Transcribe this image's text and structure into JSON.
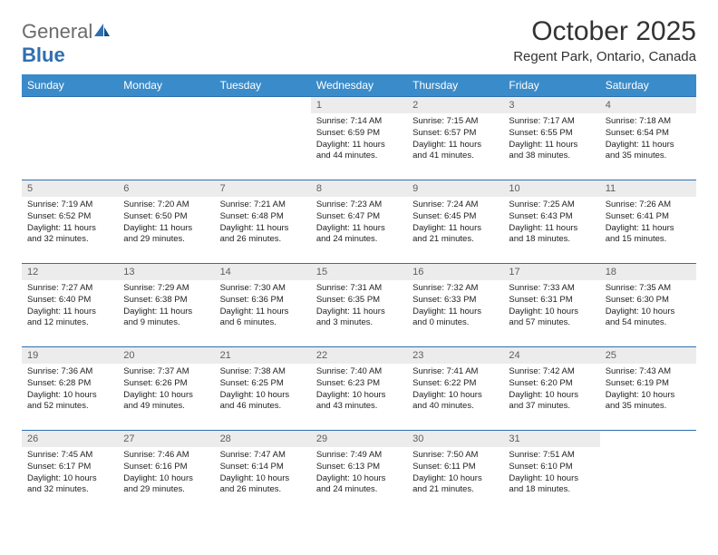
{
  "brand": {
    "name_a": "General",
    "name_b": "Blue"
  },
  "title": "October 2025",
  "location": "Regent Park, Ontario, Canada",
  "header_bg": "#3a8bc9",
  "border_color": "#2f6fb0",
  "daynum_bg": "#ececec",
  "day_headers": [
    "Sunday",
    "Monday",
    "Tuesday",
    "Wednesday",
    "Thursday",
    "Friday",
    "Saturday"
  ],
  "weeks": [
    [
      null,
      null,
      null,
      {
        "n": "1",
        "sr": "7:14 AM",
        "ss": "6:59 PM",
        "dh": "11",
        "dm": "44"
      },
      {
        "n": "2",
        "sr": "7:15 AM",
        "ss": "6:57 PM",
        "dh": "11",
        "dm": "41"
      },
      {
        "n": "3",
        "sr": "7:17 AM",
        "ss": "6:55 PM",
        "dh": "11",
        "dm": "38"
      },
      {
        "n": "4",
        "sr": "7:18 AM",
        "ss": "6:54 PM",
        "dh": "11",
        "dm": "35"
      }
    ],
    [
      {
        "n": "5",
        "sr": "7:19 AM",
        "ss": "6:52 PM",
        "dh": "11",
        "dm": "32"
      },
      {
        "n": "6",
        "sr": "7:20 AM",
        "ss": "6:50 PM",
        "dh": "11",
        "dm": "29"
      },
      {
        "n": "7",
        "sr": "7:21 AM",
        "ss": "6:48 PM",
        "dh": "11",
        "dm": "26"
      },
      {
        "n": "8",
        "sr": "7:23 AM",
        "ss": "6:47 PM",
        "dh": "11",
        "dm": "24"
      },
      {
        "n": "9",
        "sr": "7:24 AM",
        "ss": "6:45 PM",
        "dh": "11",
        "dm": "21"
      },
      {
        "n": "10",
        "sr": "7:25 AM",
        "ss": "6:43 PM",
        "dh": "11",
        "dm": "18"
      },
      {
        "n": "11",
        "sr": "7:26 AM",
        "ss": "6:41 PM",
        "dh": "11",
        "dm": "15"
      }
    ],
    [
      {
        "n": "12",
        "sr": "7:27 AM",
        "ss": "6:40 PM",
        "dh": "11",
        "dm": "12"
      },
      {
        "n": "13",
        "sr": "7:29 AM",
        "ss": "6:38 PM",
        "dh": "11",
        "dm": "9"
      },
      {
        "n": "14",
        "sr": "7:30 AM",
        "ss": "6:36 PM",
        "dh": "11",
        "dm": "6"
      },
      {
        "n": "15",
        "sr": "7:31 AM",
        "ss": "6:35 PM",
        "dh": "11",
        "dm": "3"
      },
      {
        "n": "16",
        "sr": "7:32 AM",
        "ss": "6:33 PM",
        "dh": "11",
        "dm": "0"
      },
      {
        "n": "17",
        "sr": "7:33 AM",
        "ss": "6:31 PM",
        "dh": "10",
        "dm": "57"
      },
      {
        "n": "18",
        "sr": "7:35 AM",
        "ss": "6:30 PM",
        "dh": "10",
        "dm": "54"
      }
    ],
    [
      {
        "n": "19",
        "sr": "7:36 AM",
        "ss": "6:28 PM",
        "dh": "10",
        "dm": "52"
      },
      {
        "n": "20",
        "sr": "7:37 AM",
        "ss": "6:26 PM",
        "dh": "10",
        "dm": "49"
      },
      {
        "n": "21",
        "sr": "7:38 AM",
        "ss": "6:25 PM",
        "dh": "10",
        "dm": "46"
      },
      {
        "n": "22",
        "sr": "7:40 AM",
        "ss": "6:23 PM",
        "dh": "10",
        "dm": "43"
      },
      {
        "n": "23",
        "sr": "7:41 AM",
        "ss": "6:22 PM",
        "dh": "10",
        "dm": "40"
      },
      {
        "n": "24",
        "sr": "7:42 AM",
        "ss": "6:20 PM",
        "dh": "10",
        "dm": "37"
      },
      {
        "n": "25",
        "sr": "7:43 AM",
        "ss": "6:19 PM",
        "dh": "10",
        "dm": "35"
      }
    ],
    [
      {
        "n": "26",
        "sr": "7:45 AM",
        "ss": "6:17 PM",
        "dh": "10",
        "dm": "32"
      },
      {
        "n": "27",
        "sr": "7:46 AM",
        "ss": "6:16 PM",
        "dh": "10",
        "dm": "29"
      },
      {
        "n": "28",
        "sr": "7:47 AM",
        "ss": "6:14 PM",
        "dh": "10",
        "dm": "26"
      },
      {
        "n": "29",
        "sr": "7:49 AM",
        "ss": "6:13 PM",
        "dh": "10",
        "dm": "24"
      },
      {
        "n": "30",
        "sr": "7:50 AM",
        "ss": "6:11 PM",
        "dh": "10",
        "dm": "21"
      },
      {
        "n": "31",
        "sr": "7:51 AM",
        "ss": "6:10 PM",
        "dh": "10",
        "dm": "18"
      },
      null
    ]
  ],
  "labels": {
    "sunrise": "Sunrise:",
    "sunset": "Sunset:",
    "daylight": "Daylight:",
    "hours": "hours",
    "and": "and",
    "minutes": "minutes."
  }
}
